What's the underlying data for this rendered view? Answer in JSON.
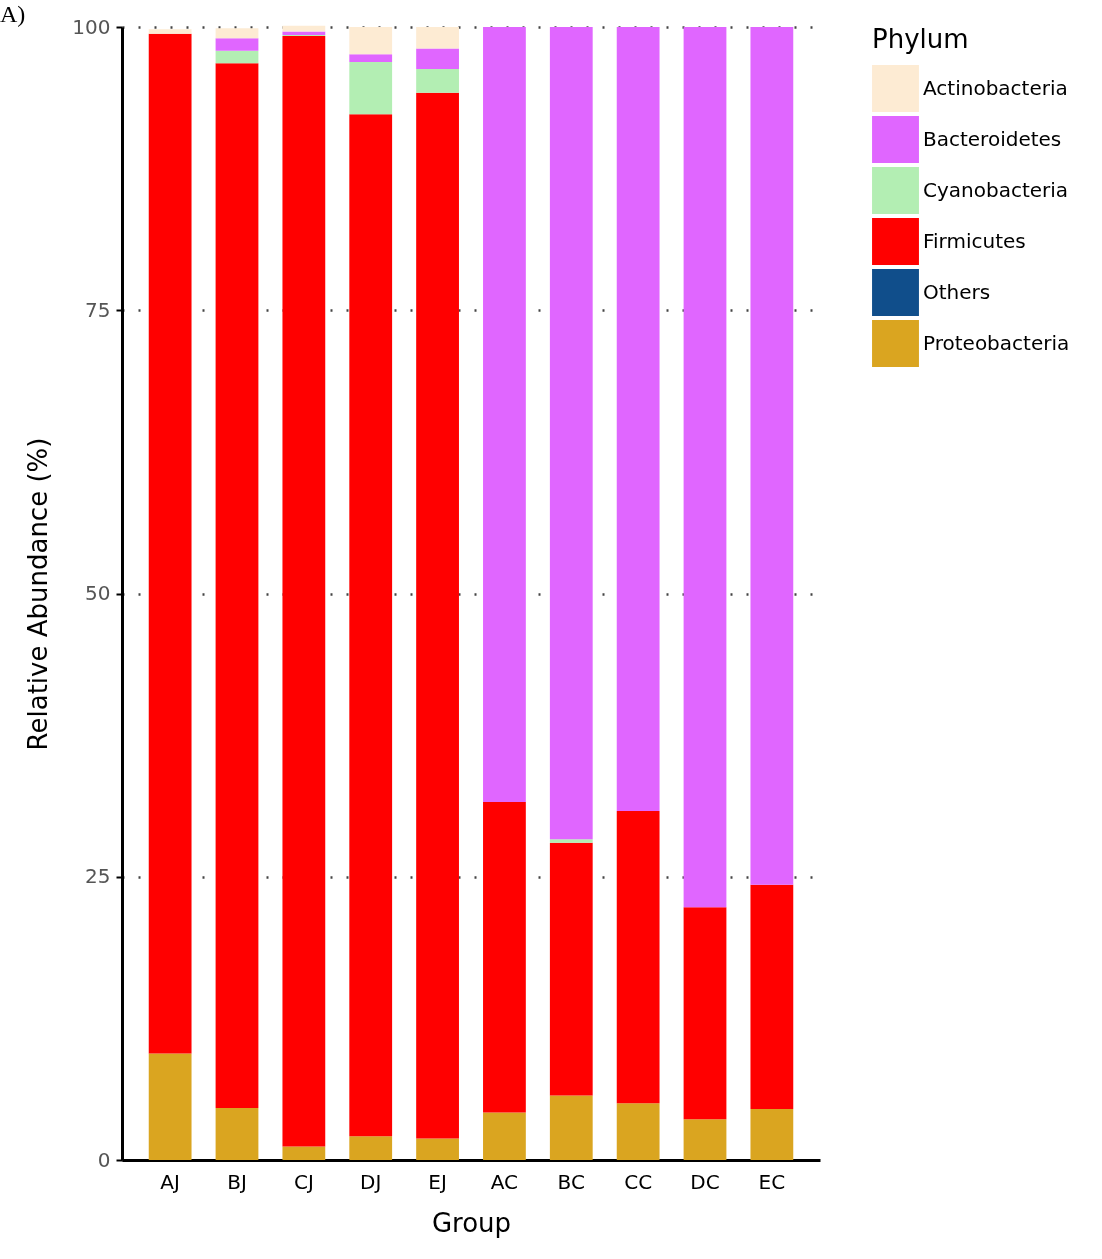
{
  "chart_data": {
    "type": "bar",
    "stacked": true,
    "xlabel": "Group",
    "ylabel": "Relative Abundance (%)",
    "legend_title": "Phylum",
    "legend": "right",
    "grid": "y",
    "annotations": [
      "A)"
    ],
    "categories": [
      "AJ",
      "BJ",
      "CJ",
      "DJ",
      "EJ",
      "AC",
      "BC",
      "CC",
      "DC",
      "EC"
    ],
    "ylim": [
      0,
      100
    ],
    "yticks": [
      0,
      25,
      50,
      75,
      100
    ],
    "series": [
      {
        "name": "Proteobacteria",
        "color": "#daa520",
        "values": [
          9.4,
          4.6,
          1.2,
          2.1,
          1.9,
          4.2,
          5.7,
          5.0,
          3.6,
          4.5
        ]
      },
      {
        "name": "Others",
        "color": "#104e8b",
        "values": [
          0,
          0,
          0,
          0,
          0,
          0,
          0,
          0,
          0,
          0
        ]
      },
      {
        "name": "Firmicutes",
        "color": "#ff0000",
        "values": [
          90.0,
          92.2,
          98.0,
          90.2,
          92.3,
          27.4,
          22.3,
          25.8,
          18.7,
          19.8
        ]
      },
      {
        "name": "Cyanobacteria",
        "color": "#b3eeb3",
        "values": [
          null,
          1.1,
          0.1,
          4.6,
          2.1,
          0,
          0.3,
          0,
          0,
          0
        ]
      },
      {
        "name": "Bacteroidetes",
        "color": "#e066ff",
        "values": [
          0,
          1.1,
          0.3,
          0.7,
          1.8,
          68.4,
          71.7,
          69.2,
          77.7,
          75.7
        ]
      },
      {
        "name": "Actinobacteria",
        "color": "#fdebd3",
        "values": [
          0.4,
          0.9,
          0.5,
          2.4,
          1.9,
          0,
          0,
          0,
          0,
          0
        ]
      }
    ]
  }
}
